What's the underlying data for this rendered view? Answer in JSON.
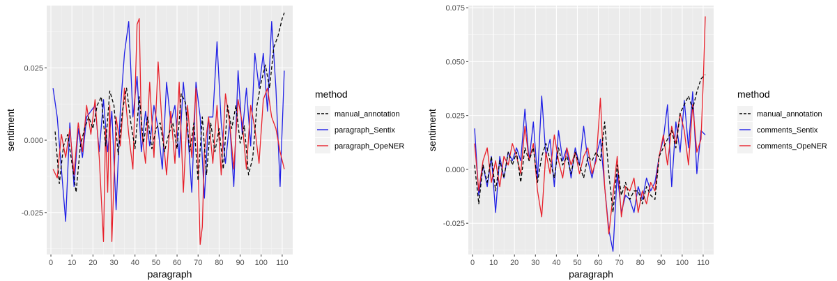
{
  "colors": {
    "panel_bg": "#ebebeb",
    "grid_major": "#ffffff",
    "manual_annotation": "#000000",
    "sentix": "#1f1fe6",
    "opener": "#e8202a"
  },
  "chart_data": [
    {
      "type": "line",
      "title": "",
      "xlabel": "paragraph",
      "ylabel": "sentiment",
      "xlim": [
        -2,
        115
      ],
      "ylim": [
        -0.0395,
        0.0465
      ],
      "x_ticks": [
        0,
        10,
        20,
        30,
        40,
        50,
        60,
        70,
        80,
        90,
        100,
        110
      ],
      "x_tick_labels": [
        "0",
        "10",
        "20",
        "30",
        "40",
        "50",
        "60",
        "70",
        "80",
        "90",
        "100",
        "110"
      ],
      "y_ticks": [
        -0.025,
        0.0,
        0.025
      ],
      "y_tick_labels": [
        "-0.025",
        "0.000",
        "0.025"
      ],
      "grid": true,
      "legend": {
        "title": "method",
        "position": "right"
      },
      "series": [
        {
          "name": "manual_annotation",
          "color": "#000000",
          "dash": "dashed",
          "x": [
            2,
            4,
            6,
            8,
            10,
            12,
            14,
            16,
            18,
            20,
            22,
            24,
            26,
            28,
            30,
            32,
            34,
            36,
            38,
            40,
            42,
            44,
            46,
            48,
            50,
            52,
            54,
            56,
            58,
            60,
            62,
            64,
            66,
            68,
            70,
            72,
            74,
            76,
            78,
            80,
            82,
            84,
            86,
            88,
            90,
            92,
            94,
            96,
            98,
            100,
            102,
            104,
            106,
            108,
            110,
            111
          ],
          "values": [
            0.003,
            -0.015,
            -0.002,
            0.002,
            -0.008,
            -0.018,
            -0.002,
            0.004,
            0.008,
            0.004,
            0.012,
            0.015,
            -0.002,
            0.017,
            0.012,
            -0.005,
            0.01,
            0.018,
            0.006,
            -0.003,
            0.015,
            -0.001,
            0.008,
            -0.003,
            0.004,
            0.006,
            -0.004,
            0.002,
            0.006,
            -0.003,
            0.016,
            0.013,
            -0.004,
            0.006,
            -0.014,
            0.008,
            -0.012,
            0.006,
            -0.004,
            0.004,
            -0.01,
            0.012,
            0.004,
            0.012,
            -0.001,
            0.005,
            -0.012,
            -0.006,
            0.012,
            0.02,
            0.026,
            0.018,
            0.032,
            0.036,
            0.042,
            0.044
          ]
        },
        {
          "name": "paragraph_Sentix",
          "color": "#1f1fe6",
          "dash": "solid",
          "x": [
            1,
            3,
            5,
            7,
            9,
            11,
            13,
            15,
            17,
            19,
            21,
            23,
            25,
            27,
            29,
            31,
            33,
            35,
            37,
            39,
            41,
            43,
            45,
            47,
            49,
            51,
            53,
            55,
            57,
            59,
            61,
            63,
            65,
            67,
            69,
            71,
            73,
            75,
            77,
            79,
            81,
            83,
            85,
            87,
            89,
            91,
            93,
            95,
            97,
            99,
            101,
            103,
            105,
            107,
            109,
            111
          ],
          "values": [
            0.018,
            0.008,
            -0.01,
            -0.028,
            0.006,
            -0.016,
            0.004,
            -0.006,
            0.008,
            0.01,
            0.012,
            -0.004,
            0.014,
            -0.004,
            0.01,
            -0.024,
            0.01,
            0.03,
            0.041,
            0.008,
            0.022,
            -0.004,
            0.01,
            -0.002,
            0.012,
            0.004,
            -0.01,
            0.02,
            0.006,
            0.012,
            -0.006,
            0.02,
            0.004,
            -0.018,
            0.02,
            0.008,
            -0.02,
            0.008,
            0.008,
            0.034,
            0.006,
            -0.008,
            0.006,
            -0.016,
            0.024,
            0.002,
            0.018,
            -0.002,
            0.03,
            0.018,
            0.03,
            0.01,
            0.041,
            0.018,
            -0.016,
            0.024
          ]
        },
        {
          "name": "paragraph_OpeNER",
          "color": "#e8202a",
          "dash": "solid",
          "x": [
            1,
            3,
            5,
            7,
            9,
            11,
            13,
            15,
            17,
            19,
            21,
            23,
            25,
            26,
            27,
            28,
            29,
            31,
            33,
            35,
            37,
            39,
            41,
            42,
            43,
            45,
            47,
            49,
            51,
            53,
            55,
            57,
            59,
            61,
            63,
            65,
            67,
            69,
            71,
            72,
            73,
            75,
            77,
            79,
            81,
            83,
            85,
            87,
            89,
            91,
            93,
            95,
            97,
            99,
            101,
            103,
            105,
            107,
            109,
            111
          ],
          "values": [
            -0.01,
            -0.013,
            0.002,
            -0.006,
            0.004,
            -0.012,
            0.006,
            -0.004,
            0.012,
            0.002,
            0.014,
            -0.006,
            -0.035,
            0.004,
            -0.018,
            0.012,
            -0.035,
            0.008,
            -0.002,
            0.018,
            0.002,
            -0.01,
            0.04,
            0.042,
            0.004,
            -0.008,
            0.02,
            -0.006,
            0.027,
            0.004,
            -0.012,
            0.01,
            -0.008,
            0.02,
            -0.018,
            0.012,
            -0.006,
            0.018,
            -0.036,
            -0.03,
            -0.004,
            0.008,
            -0.008,
            0.012,
            -0.012,
            0.016,
            0.006,
            -0.01,
            0.014,
            0.006,
            -0.01,
            0.012,
            0.004,
            -0.008,
            0.014,
            0.018,
            0.008,
            0.004,
            -0.004,
            -0.01
          ]
        }
      ]
    },
    {
      "type": "line",
      "title": "",
      "xlabel": "paragraph",
      "ylabel": "sentiment",
      "xlim": [
        -2,
        115
      ],
      "ylim": [
        -0.0395,
        0.076
      ],
      "x_ticks": [
        0,
        10,
        20,
        30,
        40,
        50,
        60,
        70,
        80,
        90,
        100,
        110
      ],
      "x_tick_labels": [
        "0",
        "10",
        "20",
        "30",
        "40",
        "50",
        "60",
        "70",
        "80",
        "90",
        "100",
        "110"
      ],
      "y_ticks": [
        -0.025,
        0.0,
        0.025,
        0.05,
        0.075
      ],
      "y_tick_labels": [
        "-0.025",
        "0.000",
        "0.025",
        "0.050",
        "0.075"
      ],
      "grid": true,
      "legend": {
        "title": "method",
        "position": "right"
      },
      "series": [
        {
          "name": "manual_annotation",
          "color": "#000000",
          "dash": "dashed",
          "x": [
            1,
            3,
            5,
            7,
            9,
            11,
            13,
            15,
            17,
            19,
            21,
            23,
            25,
            27,
            29,
            31,
            33,
            35,
            37,
            39,
            41,
            43,
            45,
            47,
            49,
            51,
            53,
            55,
            57,
            59,
            61,
            63,
            65,
            67,
            69,
            71,
            73,
            75,
            77,
            79,
            81,
            83,
            85,
            87,
            89,
            91,
            93,
            95,
            97,
            99,
            101,
            103,
            105,
            107,
            109,
            111
          ],
          "values": [
            0.002,
            -0.016,
            0.002,
            -0.006,
            0.006,
            -0.01,
            0.004,
            -0.004,
            0.008,
            0.002,
            0.008,
            -0.006,
            0.01,
            0.004,
            0.01,
            -0.006,
            0.006,
            0.012,
            0.004,
            -0.004,
            0.01,
            0.002,
            0.006,
            -0.002,
            0.008,
            0.002,
            -0.004,
            0.006,
            0.004,
            0.008,
            0.004,
            0.022,
            -0.002,
            -0.02,
            0.002,
            -0.012,
            -0.006,
            -0.014,
            -0.01,
            -0.01,
            -0.016,
            -0.008,
            -0.012,
            -0.014,
            0.006,
            0.01,
            0.014,
            0.018,
            0.01,
            0.026,
            0.03,
            0.034,
            0.028,
            0.036,
            0.042,
            0.044
          ]
        },
        {
          "name": "comments_Sentix",
          "color": "#1f1fe6",
          "dash": "solid",
          "x": [
            1,
            3,
            5,
            7,
            9,
            11,
            13,
            15,
            17,
            19,
            21,
            23,
            25,
            27,
            29,
            31,
            33,
            35,
            37,
            39,
            41,
            43,
            45,
            47,
            49,
            51,
            53,
            55,
            57,
            59,
            61,
            63,
            65,
            67,
            69,
            71,
            73,
            75,
            77,
            79,
            81,
            83,
            85,
            87,
            89,
            91,
            93,
            95,
            97,
            99,
            101,
            103,
            105,
            107,
            109,
            111
          ],
          "values": [
            0.019,
            -0.012,
            0.002,
            -0.008,
            0.006,
            -0.02,
            0.006,
            -0.004,
            0.008,
            0.004,
            0.01,
            0.004,
            0.028,
            0.004,
            0.022,
            -0.004,
            0.034,
            0.006,
            0.014,
            -0.008,
            0.018,
            0.004,
            0.01,
            -0.004,
            0.01,
            0.002,
            0.02,
            0.004,
            -0.004,
            0.006,
            0.014,
            -0.008,
            -0.028,
            -0.038,
            -0.002,
            -0.02,
            -0.012,
            -0.014,
            -0.02,
            -0.008,
            -0.014,
            -0.004,
            -0.01,
            -0.006,
            0.006,
            0.014,
            0.03,
            -0.008,
            0.022,
            0.008,
            0.032,
            0.01,
            0.036,
            -0.002,
            0.018,
            0.016
          ]
        },
        {
          "name": "comments_OpeNER",
          "color": "#e8202a",
          "dash": "solid",
          "x": [
            1,
            3,
            5,
            7,
            9,
            11,
            13,
            15,
            17,
            19,
            21,
            23,
            25,
            27,
            29,
            31,
            33,
            35,
            37,
            39,
            41,
            43,
            45,
            47,
            49,
            51,
            53,
            55,
            57,
            59,
            61,
            63,
            65,
            67,
            69,
            71,
            73,
            75,
            77,
            79,
            81,
            83,
            85,
            87,
            89,
            91,
            93,
            95,
            97,
            99,
            101,
            103,
            105,
            107,
            109,
            110,
            111
          ],
          "values": [
            0.012,
            -0.01,
            0.004,
            0.01,
            -0.006,
            0.004,
            -0.008,
            0.006,
            0.002,
            0.012,
            0.006,
            -0.002,
            0.02,
            0.004,
            0.012,
            -0.01,
            -0.022,
            0.008,
            -0.002,
            0.016,
            0.004,
            -0.004,
            0.01,
            0.002,
            0.008,
            -0.002,
            0.006,
            0.01,
            -0.002,
            0.004,
            0.033,
            -0.008,
            -0.03,
            -0.012,
            0.006,
            -0.022,
            -0.008,
            -0.01,
            -0.004,
            -0.02,
            -0.01,
            -0.016,
            -0.006,
            -0.01,
            0.006,
            0.016,
            0.002,
            0.02,
            0.012,
            0.026,
            0.018,
            0.002,
            0.03,
            0.008,
            0.014,
            0.04,
            0.071
          ]
        }
      ]
    }
  ]
}
